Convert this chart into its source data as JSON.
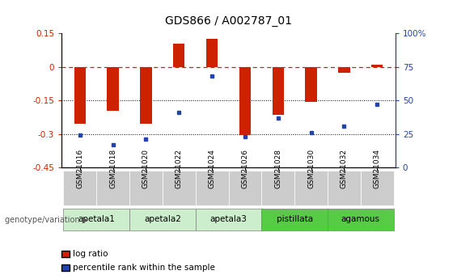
{
  "title": "GDS866 / A002787_01",
  "samples": [
    "GSM21016",
    "GSM21018",
    "GSM21020",
    "GSM21022",
    "GSM21024",
    "GSM21026",
    "GSM21028",
    "GSM21030",
    "GSM21032",
    "GSM21034"
  ],
  "log_ratio": [
    -0.255,
    -0.195,
    -0.255,
    0.105,
    0.125,
    -0.305,
    -0.215,
    -0.155,
    -0.025,
    0.01
  ],
  "percentile_rank": [
    24,
    17,
    21,
    41,
    68,
    23,
    37,
    26,
    31,
    47
  ],
  "ylim_left": [
    -0.45,
    0.15
  ],
  "ylim_right": [
    0,
    100
  ],
  "yticks_left": [
    -0.45,
    -0.3,
    -0.15,
    0.0,
    0.15
  ],
  "ytick_labels_left": [
    "-0.45",
    "-0.3",
    "-0.15",
    "0",
    "0.15"
  ],
  "yticks_right": [
    0,
    25,
    50,
    75,
    100
  ],
  "ytick_labels_right": [
    "0",
    "25",
    "50",
    "75",
    "100%"
  ],
  "hlines": [
    -0.3,
    -0.15
  ],
  "bar_color": "#cc2200",
  "dot_color": "#2244aa",
  "dashed_line_color": "#cc2200",
  "groups": [
    {
      "name": "apetala1",
      "start": 0,
      "end": 1,
      "color": "#d5ecd4"
    },
    {
      "name": "apetala2",
      "start": 2,
      "end": 3,
      "color": "#d5ecd4"
    },
    {
      "name": "apetala3",
      "start": 4,
      "end": 5,
      "color": "#d5ecd4"
    },
    {
      "name": "pistillata",
      "start": 6,
      "end": 7,
      "color": "#66cc55"
    },
    {
      "name": "agamous",
      "start": 8,
      "end": 9,
      "color": "#66cc55"
    }
  ],
  "legend_bar_label": "log ratio",
  "legend_dot_label": "percentile rank within the sample",
  "genotype_label": "genotype/variation",
  "background_color": "#ffffff"
}
